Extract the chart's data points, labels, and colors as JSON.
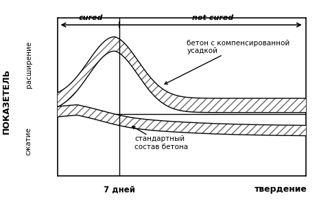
{
  "xlabel": "твердение",
  "ylabel_top": "расширение",
  "ylabel_main": "ПОКАЗЕТЕЛЬ",
  "ylabel_bottom": "сжатие",
  "cured_label": "cured",
  "not_cured_label": "not cured",
  "day7_label": "7 дней",
  "label_expansion": "бетон с компенсированной\nусадкой",
  "label_standard": "стандартный\nсостав бетона",
  "xlim": [
    0,
    10
  ],
  "ylim": [
    -3.2,
    5.0
  ],
  "vline_x": 2.5,
  "hatch_pattern": "///",
  "line_color": "#111111",
  "hatch_color": "#666666"
}
